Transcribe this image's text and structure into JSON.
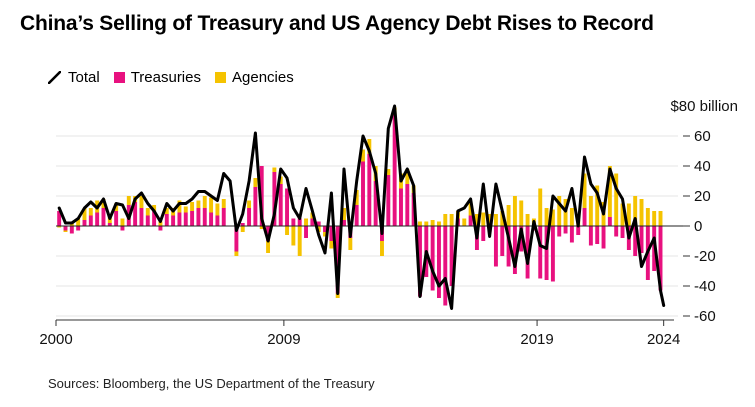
{
  "title": "China’s Selling of Treasury and US Agency Debt Rises to Record",
  "legend": {
    "total": "Total",
    "treasuries": "Treasuries",
    "agencies": "Agencies"
  },
  "source": "Sources: Bloomberg, the US Department of the Treasury",
  "colors": {
    "treasuries": "#e8117f",
    "agencies": "#f5c300",
    "total": "#000000",
    "axis": "#333333",
    "grid": "#e6e6e6"
  },
  "chart_data": {
    "type": "bar",
    "unit_label": "$80 billion",
    "ylim": [
      -60,
      80
    ],
    "yticks": [
      {
        "value": 60,
        "label": "60"
      },
      {
        "value": 40,
        "label": "40"
      },
      {
        "value": 20,
        "label": "20"
      },
      {
        "value": 0,
        "label": "0"
      },
      {
        "value": -20,
        "label": "-20"
      },
      {
        "value": -40,
        "label": "-40"
      },
      {
        "value": -60,
        "label": "-60"
      }
    ],
    "xlim": [
      2000.0,
      2024.25
    ],
    "xticks": [
      {
        "value": 2000,
        "label": "2000"
      },
      {
        "value": 2009,
        "label": "2009"
      },
      {
        "value": 2019,
        "label": "2019"
      },
      {
        "value": 2024,
        "label": "2024"
      }
    ],
    "series": [
      {
        "name": "Treasuries",
        "x": [
          2000.125,
          2000.375,
          2000.625,
          2000.875,
          2001.125,
          2001.375,
          2001.625,
          2001.875,
          2002.125,
          2002.375,
          2002.625,
          2002.875,
          2003.125,
          2003.375,
          2003.625,
          2003.875,
          2004.125,
          2004.375,
          2004.625,
          2004.875,
          2005.125,
          2005.375,
          2005.625,
          2005.875,
          2006.125,
          2006.375,
          2006.625,
          2006.875,
          2007.125,
          2007.375,
          2007.625,
          2007.875,
          2008.125,
          2008.375,
          2008.625,
          2008.875,
          2009.125,
          2009.375,
          2009.625,
          2009.875,
          2010.125,
          2010.375,
          2010.625,
          2010.875,
          2011.125,
          2011.375,
          2011.625,
          2011.875,
          2012.125,
          2012.375,
          2012.625,
          2012.875,
          2013.125,
          2013.375,
          2013.625,
          2013.875,
          2014.125,
          2014.375,
          2014.625,
          2014.875,
          2015.125,
          2015.375,
          2015.625,
          2015.875,
          2016.125,
          2016.375,
          2016.625,
          2016.875,
          2017.125,
          2017.375,
          2017.625,
          2017.875,
          2018.125,
          2018.375,
          2018.625,
          2018.875,
          2019.125,
          2019.375,
          2019.625,
          2019.875,
          2020.125,
          2020.375,
          2020.625,
          2020.875,
          2021.125,
          2021.375,
          2021.625,
          2021.875,
          2022.125,
          2022.375,
          2022.625,
          2022.875,
          2023.125,
          2023.375,
          2023.625,
          2023.875
        ],
        "values": [
          10,
          -3,
          -5,
          -3,
          4,
          7,
          9,
          12,
          2,
          10,
          -3,
          14,
          16,
          12,
          7,
          10,
          -3,
          8,
          7,
          9,
          9,
          10,
          12,
          12,
          9,
          7,
          12,
          0,
          -17,
          2,
          12,
          26,
          40,
          -10,
          36,
          28,
          25,
          5,
          5,
          -8,
          5,
          3,
          -4,
          -10,
          -45,
          4,
          -8,
          14,
          43,
          48,
          30,
          -10,
          34,
          74,
          25,
          28,
          22,
          -47,
          -34,
          -43,
          -48,
          -53,
          -40,
          5,
          0,
          7,
          -16,
          -10,
          -4,
          -27,
          -20,
          -27,
          -32,
          -17,
          -35,
          -3,
          -35,
          -36,
          -37,
          -7,
          -5,
          -11,
          -6,
          12,
          -13,
          -12,
          -15,
          6,
          -7,
          -8,
          -16,
          -20,
          -18,
          -36,
          -30,
          -43
        ]
      },
      {
        "name": "Agencies",
        "x": [
          2000.125,
          2000.375,
          2000.625,
          2000.875,
          2001.125,
          2001.375,
          2001.625,
          2001.875,
          2002.125,
          2002.375,
          2002.625,
          2002.875,
          2003.125,
          2003.375,
          2003.625,
          2003.875,
          2004.125,
          2004.375,
          2004.625,
          2004.875,
          2005.125,
          2005.375,
          2005.625,
          2005.875,
          2006.125,
          2006.375,
          2006.625,
          2006.875,
          2007.125,
          2007.375,
          2007.625,
          2007.875,
          2008.125,
          2008.375,
          2008.625,
          2008.875,
          2009.125,
          2009.375,
          2009.625,
          2009.875,
          2010.125,
          2010.375,
          2010.625,
          2010.875,
          2011.125,
          2011.375,
          2011.625,
          2011.875,
          2012.125,
          2012.375,
          2012.625,
          2012.875,
          2013.125,
          2013.375,
          2013.625,
          2013.875,
          2014.125,
          2014.375,
          2014.625,
          2014.875,
          2015.125,
          2015.375,
          2015.625,
          2015.875,
          2016.125,
          2016.375,
          2016.625,
          2016.875,
          2017.125,
          2017.375,
          2017.625,
          2017.875,
          2018.125,
          2018.375,
          2018.625,
          2018.875,
          2019.125,
          2019.375,
          2019.625,
          2019.875,
          2020.125,
          2020.375,
          2020.625,
          2020.875,
          2021.125,
          2021.375,
          2021.625,
          2021.875,
          2022.125,
          2022.375,
          2022.625,
          2022.875,
          2023.125,
          2023.375,
          2023.625,
          2023.875
        ],
        "values": [
          -1,
          -1,
          3,
          5,
          8,
          5,
          8,
          6,
          4,
          5,
          5,
          6,
          4,
          8,
          5,
          4,
          3,
          4,
          5,
          8,
          4,
          6,
          5,
          8,
          10,
          8,
          6,
          0,
          -3,
          -4,
          5,
          6,
          -2,
          -8,
          3,
          5,
          -6,
          -13,
          -20,
          5,
          4,
          -4,
          -3,
          -5,
          -3,
          8,
          -8,
          10,
          8,
          10,
          10,
          -10,
          4,
          5,
          10,
          10,
          5,
          3,
          3,
          4,
          3,
          8,
          8,
          5,
          5,
          8,
          8,
          9,
          8,
          8,
          10,
          14,
          20,
          17,
          8,
          5,
          25,
          12,
          11,
          20,
          18,
          12,
          4,
          23,
          20,
          27,
          16,
          34,
          35,
          15,
          15,
          20,
          18,
          12,
          10,
          10
        ]
      },
      {
        "name": "Total",
        "x": [
          2000.125,
          2000.375,
          2000.625,
          2000.875,
          2001.125,
          2001.375,
          2001.625,
          2001.875,
          2002.125,
          2002.375,
          2002.625,
          2002.875,
          2003.125,
          2003.375,
          2003.625,
          2003.875,
          2004.125,
          2004.375,
          2004.625,
          2004.875,
          2005.125,
          2005.375,
          2005.625,
          2005.875,
          2006.125,
          2006.375,
          2006.625,
          2006.875,
          2007.125,
          2007.375,
          2007.625,
          2007.875,
          2008.125,
          2008.375,
          2008.625,
          2008.875,
          2009.125,
          2009.375,
          2009.625,
          2009.875,
          2010.125,
          2010.375,
          2010.625,
          2010.875,
          2011.125,
          2011.375,
          2011.625,
          2011.875,
          2012.125,
          2012.375,
          2012.625,
          2012.875,
          2013.125,
          2013.375,
          2013.625,
          2013.875,
          2014.125,
          2014.375,
          2014.625,
          2014.875,
          2015.125,
          2015.375,
          2015.625,
          2015.875,
          2016.125,
          2016.375,
          2016.625,
          2016.875,
          2017.125,
          2017.375,
          2017.625,
          2017.875,
          2018.125,
          2018.375,
          2018.625,
          2018.875,
          2019.125,
          2019.375,
          2019.625,
          2019.875,
          2020.125,
          2020.375,
          2020.625,
          2020.875,
          2021.125,
          2021.375,
          2021.625,
          2021.875,
          2022.125,
          2022.375,
          2022.625,
          2022.875,
          2023.125,
          2023.375,
          2023.625,
          2023.875,
          2024.0
        ],
        "values": [
          12,
          2,
          2,
          5,
          12,
          16,
          12,
          18,
          5,
          15,
          14,
          5,
          18,
          22,
          15,
          10,
          3,
          15,
          10,
          15,
          15,
          18,
          23,
          23,
          20,
          17,
          35,
          30,
          -3,
          8,
          30,
          62,
          5,
          -10,
          8,
          38,
          32,
          12,
          5,
          25,
          10,
          -6,
          -18,
          22,
          -45,
          38,
          -7,
          30,
          60,
          50,
          35,
          -5,
          65,
          80,
          30,
          38,
          27,
          -47,
          -17,
          -30,
          -40,
          -35,
          -55,
          10,
          12,
          18,
          -8,
          28,
          -7,
          28,
          10,
          -8,
          -27,
          -2,
          -25,
          3,
          -13,
          -15,
          20,
          15,
          10,
          25,
          0,
          46,
          28,
          22,
          8,
          38,
          25,
          18,
          -8,
          5,
          -27,
          -17,
          -8,
          -43,
          -53
        ]
      }
    ]
  }
}
